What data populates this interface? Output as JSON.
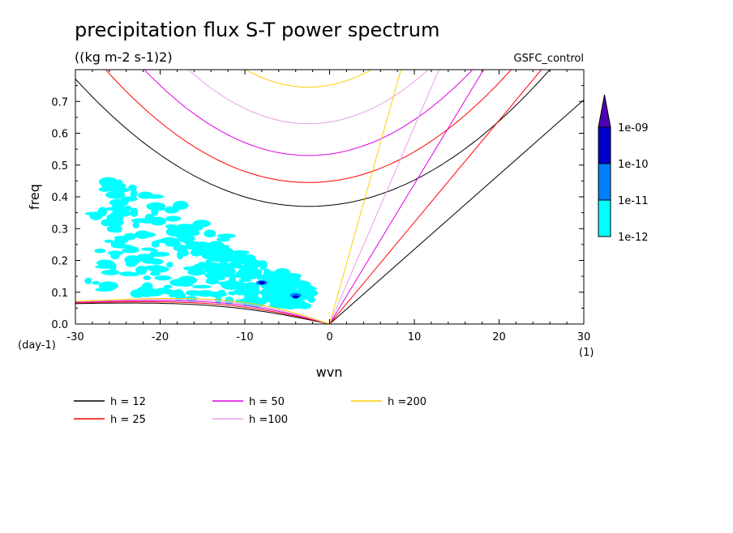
{
  "chart_data": {
    "type": "contour",
    "title": "precipitation flux S-T power spectrum",
    "subtitle": "((kg m-2 s-1)2)",
    "run_label": "GSFC_control",
    "xlabel": "wvn",
    "ylabel": "freq",
    "x_unit": "(1)",
    "y_unit": "(day-1)",
    "xlim": [
      -30,
      30
    ],
    "ylim": [
      0,
      0.8
    ],
    "xticks": [
      "-30",
      "-20",
      "-10",
      "0",
      "10",
      "20",
      "30"
    ],
    "yticks": [
      "0.0",
      "0.1",
      "0.2",
      "0.3",
      "0.4",
      "0.5",
      "0.6",
      "0.7"
    ],
    "colorbar": {
      "levels": [
        "1e-12",
        "1e-11",
        "1e-10",
        "1e-09"
      ],
      "colors": [
        "#00ffff",
        "#0080ff",
        "#0000c8",
        "#5000b4"
      ]
    },
    "series": [
      {
        "name": "h = 12",
        "color": "#000000"
      },
      {
        "name": "h = 25",
        "color": "#ff0000"
      },
      {
        "name": "h = 50",
        "color": "#e000e0"
      },
      {
        "name": "h =100",
        "color": "#e8a0e8"
      },
      {
        "name": "h =200",
        "color": "#ffcc00"
      }
    ],
    "contour_regions": [
      {
        "level": "1e-12",
        "x": -20.5,
        "y": 0.37
      },
      {
        "level": "1e-12",
        "x": -17.5,
        "y": 0.29
      },
      {
        "level": "1e-12",
        "x": -12.5,
        "y": 0.21
      },
      {
        "level": "1e-12",
        "x": -7,
        "y": 0.12
      },
      {
        "level": "1e-12",
        "x": -5,
        "y": 0.06
      },
      {
        "level": "1e-11",
        "x": -8,
        "y": 0.13
      },
      {
        "level": "1e-11",
        "x": -4,
        "y": 0.09
      },
      {
        "level": "1e-10",
        "x": -8,
        "y": 0.13
      },
      {
        "level": "1e-10",
        "x": -4,
        "y": 0.085
      }
    ]
  }
}
